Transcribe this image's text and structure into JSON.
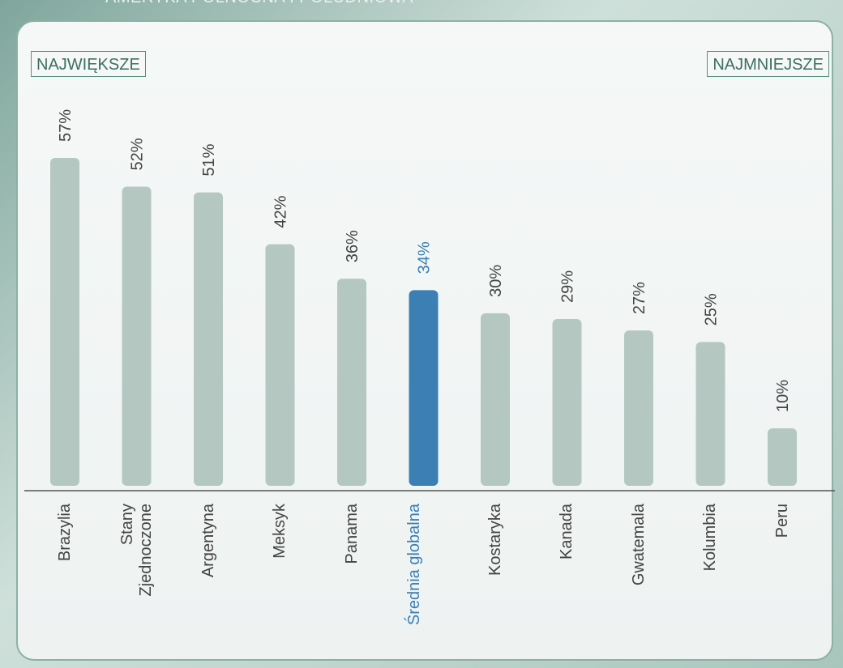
{
  "chart_data": {
    "type": "bar",
    "title": "AMERYKA PÓŁNOCNA I POŁUDNIOWA",
    "left_label": "NAJWIĘKSZE",
    "right_label": "NAJMNIEJSZE",
    "categories": [
      "Brazylia",
      "Stany Zjednoczone",
      "Argentyna",
      "Meksyk",
      "Panama",
      "Średnia globalna",
      "Kostaryka",
      "Kanada",
      "Gwatemala",
      "Kolumbia",
      "Peru"
    ],
    "values": [
      57,
      52,
      51,
      42,
      36,
      34,
      30,
      29,
      27,
      25,
      10
    ],
    "value_labels": [
      "57%",
      "52%",
      "51%",
      "42%",
      "36%",
      "34%",
      "30%",
      "29%",
      "27%",
      "25%",
      "10%"
    ],
    "colors": [
      "#b4c8c1",
      "#b4c8c1",
      "#b4c8c1",
      "#b4c8c1",
      "#b4c8c1",
      "#3b7fb4",
      "#b4c8c1",
      "#b4c8c1",
      "#b4c8c1",
      "#b4c8c1",
      "#b4c8c1"
    ],
    "label_colors": [
      "#444",
      "#444",
      "#444",
      "#444",
      "#444",
      "#3b7fb4",
      "#444",
      "#444",
      "#444",
      "#444",
      "#444"
    ]
  }
}
